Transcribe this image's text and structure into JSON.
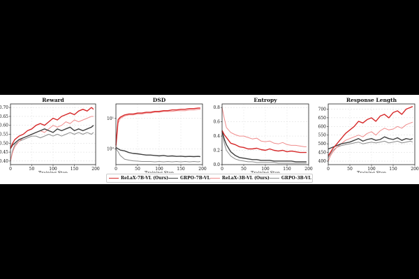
{
  "legend": {
    "items": [
      {
        "label": "ReLaX-7B-VL (Ours)",
        "color": "#d62728"
      },
      {
        "label": "GRPO-7B-VL",
        "color": "#404040"
      },
      {
        "label": "ReLaX-3B-VL (Ours)",
        "color": "#f08c8c"
      },
      {
        "label": "GRPO-3B-VL",
        "color": "#8c8c8c"
      }
    ]
  },
  "chart_data": [
    {
      "type": "line",
      "title": "Reward",
      "xlabel": "Training Step",
      "ylabel": "",
      "xlim": [
        0,
        200
      ],
      "ylim": [
        0.38,
        0.72
      ],
      "scale": "linear",
      "xticks": [
        0,
        50,
        100,
        150,
        200
      ],
      "yticks": [
        0.4,
        0.45,
        0.5,
        0.55,
        0.6,
        0.65,
        0.7
      ],
      "ytick_labels": [
        "0.40",
        "0.45",
        "0.50",
        "0.55",
        "0.60",
        "0.65",
        "0.70"
      ],
      "grid": true,
      "x": [
        0,
        5,
        10,
        20,
        30,
        40,
        50,
        60,
        70,
        80,
        90,
        100,
        110,
        120,
        130,
        140,
        150,
        160,
        170,
        180,
        190,
        195
      ],
      "series": [
        {
          "name": "ReLaX-7B-VL (Ours)",
          "values": [
            0.47,
            0.5,
            0.52,
            0.54,
            0.55,
            0.57,
            0.58,
            0.6,
            0.61,
            0.6,
            0.62,
            0.64,
            0.63,
            0.65,
            0.66,
            0.67,
            0.66,
            0.68,
            0.69,
            0.68,
            0.7,
            0.69
          ]
        },
        {
          "name": "GRPO-7B-VL",
          "values": [
            0.47,
            0.49,
            0.5,
            0.52,
            0.53,
            0.54,
            0.55,
            0.56,
            0.57,
            0.58,
            0.57,
            0.56,
            0.58,
            0.57,
            0.58,
            0.59,
            0.57,
            0.58,
            0.57,
            0.58,
            0.59,
            0.6
          ]
        },
        {
          "name": "ReLaX-3B-VL (Ours)",
          "values": [
            0.4,
            0.45,
            0.48,
            0.51,
            0.53,
            0.54,
            0.55,
            0.56,
            0.57,
            0.56,
            0.58,
            0.6,
            0.59,
            0.6,
            0.62,
            0.61,
            0.63,
            0.62,
            0.63,
            0.64,
            0.65,
            0.65
          ]
        },
        {
          "name": "GRPO-3B-VL",
          "values": [
            0.4,
            0.46,
            0.49,
            0.51,
            0.52,
            0.53,
            0.54,
            0.54,
            0.53,
            0.54,
            0.55,
            0.54,
            0.55,
            0.54,
            0.55,
            0.56,
            0.55,
            0.56,
            0.55,
            0.56,
            0.55,
            0.56
          ]
        }
      ]
    },
    {
      "type": "line",
      "title": "DSD",
      "xlabel": "Training Step",
      "ylabel": "",
      "xlim": [
        0,
        200
      ],
      "ylim": [
        0.3,
        30
      ],
      "scale": "log",
      "xticks": [
        0,
        50,
        100,
        150,
        200
      ],
      "yticks": [
        1,
        10
      ],
      "ytick_labels": [
        "10⁰",
        "10¹"
      ],
      "grid": true,
      "x": [
        0,
        5,
        10,
        20,
        30,
        40,
        50,
        60,
        70,
        80,
        90,
        100,
        110,
        120,
        130,
        140,
        150,
        160,
        170,
        180,
        190,
        195
      ],
      "series": [
        {
          "name": "ReLaX-7B-VL (Ours)",
          "values": [
            1.3,
            9,
            11,
            13,
            14,
            14,
            15,
            15,
            16,
            16,
            17,
            17,
            18,
            18,
            19,
            19,
            20,
            20,
            21,
            21,
            22,
            22
          ]
        },
        {
          "name": "GRPO-7B-VL",
          "values": [
            1.1,
            1.0,
            0.9,
            0.85,
            0.75,
            0.7,
            0.68,
            0.65,
            0.62,
            0.62,
            0.6,
            0.58,
            0.6,
            0.57,
            0.58,
            0.56,
            0.57,
            0.55,
            0.56,
            0.55,
            0.56,
            0.55
          ]
        },
        {
          "name": "ReLaX-3B-VL (Ours)",
          "values": [
            1.0,
            7,
            10,
            12,
            13,
            13,
            14,
            14,
            15,
            15,
            16,
            16,
            17,
            17,
            17,
            18,
            18,
            18,
            19,
            19,
            20,
            20
          ]
        },
        {
          "name": "GRPO-3B-VL",
          "values": [
            1.0,
            0.8,
            0.6,
            0.45,
            0.42,
            0.4,
            0.39,
            0.38,
            0.38,
            0.38,
            0.37,
            0.38,
            0.37,
            0.38,
            0.37,
            0.38,
            0.37,
            0.38,
            0.37,
            0.38,
            0.37,
            0.38
          ]
        }
      ]
    },
    {
      "type": "line",
      "title": "Entropy",
      "xlabel": "Training Step",
      "ylabel": "",
      "xlim": [
        0,
        200
      ],
      "ylim": [
        0.0,
        0.85
      ],
      "scale": "linear",
      "xticks": [
        0,
        50,
        100,
        150,
        200
      ],
      "yticks": [
        0.0,
        0.2,
        0.4,
        0.6,
        0.8
      ],
      "ytick_labels": [
        "0.0",
        "0.2",
        "0.4",
        "0.6",
        "0.8"
      ],
      "grid": true,
      "x": [
        0,
        5,
        10,
        20,
        30,
        40,
        50,
        60,
        70,
        80,
        90,
        100,
        110,
        120,
        130,
        140,
        150,
        160,
        170,
        180,
        190,
        195
      ],
      "series": [
        {
          "name": "ReLaX-7B-VL (Ours)",
          "values": [
            0.48,
            0.42,
            0.38,
            0.3,
            0.28,
            0.25,
            0.24,
            0.22,
            0.22,
            0.23,
            0.21,
            0.2,
            0.22,
            0.2,
            0.19,
            0.2,
            0.18,
            0.19,
            0.18,
            0.17,
            0.17,
            0.17
          ]
        },
        {
          "name": "GRPO-7B-VL",
          "values": [
            0.47,
            0.36,
            0.28,
            0.18,
            0.13,
            0.1,
            0.09,
            0.08,
            0.07,
            0.07,
            0.06,
            0.06,
            0.06,
            0.05,
            0.05,
            0.05,
            0.05,
            0.05,
            0.04,
            0.04,
            0.04,
            0.04
          ]
        },
        {
          "name": "ReLaX-3B-VL (Ours)",
          "values": [
            0.8,
            0.65,
            0.52,
            0.45,
            0.42,
            0.4,
            0.4,
            0.38,
            0.36,
            0.37,
            0.33,
            0.32,
            0.33,
            0.3,
            0.29,
            0.31,
            0.28,
            0.27,
            0.27,
            0.26,
            0.25,
            0.25
          ]
        },
        {
          "name": "GRPO-3B-VL",
          "values": [
            0.48,
            0.3,
            0.2,
            0.12,
            0.08,
            0.06,
            0.05,
            0.04,
            0.04,
            0.03,
            0.03,
            0.03,
            0.03,
            0.03,
            0.02,
            0.02,
            0.02,
            0.02,
            0.02,
            0.02,
            0.02,
            0.02
          ]
        }
      ]
    },
    {
      "type": "line",
      "title": "Response Length",
      "xlabel": "Training Step",
      "ylabel": "",
      "xlim": [
        0,
        200
      ],
      "ylim": [
        380,
        730
      ],
      "scale": "linear",
      "xticks": [
        0,
        50,
        100,
        150,
        200
      ],
      "yticks": [
        400,
        450,
        500,
        550,
        600,
        650,
        700
      ],
      "ytick_labels": [
        "400",
        "450",
        "500",
        "550",
        "600",
        "650",
        "700"
      ],
      "grid": true,
      "x": [
        0,
        5,
        10,
        20,
        30,
        40,
        50,
        60,
        70,
        80,
        90,
        100,
        110,
        120,
        130,
        140,
        150,
        160,
        170,
        180,
        190,
        195
      ],
      "series": [
        {
          "name": "ReLaX-7B-VL (Ours)",
          "values": [
            430,
            450,
            470,
            500,
            530,
            560,
            580,
            600,
            630,
            620,
            640,
            650,
            630,
            660,
            670,
            650,
            680,
            690,
            670,
            700,
            710,
            715
          ]
        },
        {
          "name": "GRPO-7B-VL",
          "values": [
            470,
            475,
            480,
            490,
            500,
            505,
            510,
            520,
            530,
            515,
            525,
            530,
            520,
            525,
            540,
            530,
            525,
            535,
            520,
            530,
            525,
            530
          ]
        },
        {
          "name": "ReLaX-3B-VL (Ours)",
          "values": [
            400,
            430,
            450,
            480,
            500,
            520,
            530,
            540,
            550,
            540,
            560,
            570,
            550,
            575,
            590,
            580,
            585,
            600,
            590,
            610,
            620,
            625
          ]
        },
        {
          "name": "GRPO-3B-VL",
          "values": [
            420,
            440,
            460,
            480,
            490,
            495,
            500,
            505,
            510,
            500,
            505,
            510,
            505,
            510,
            515,
            505,
            510,
            515,
            505,
            510,
            515,
            510
          ]
        }
      ]
    }
  ]
}
